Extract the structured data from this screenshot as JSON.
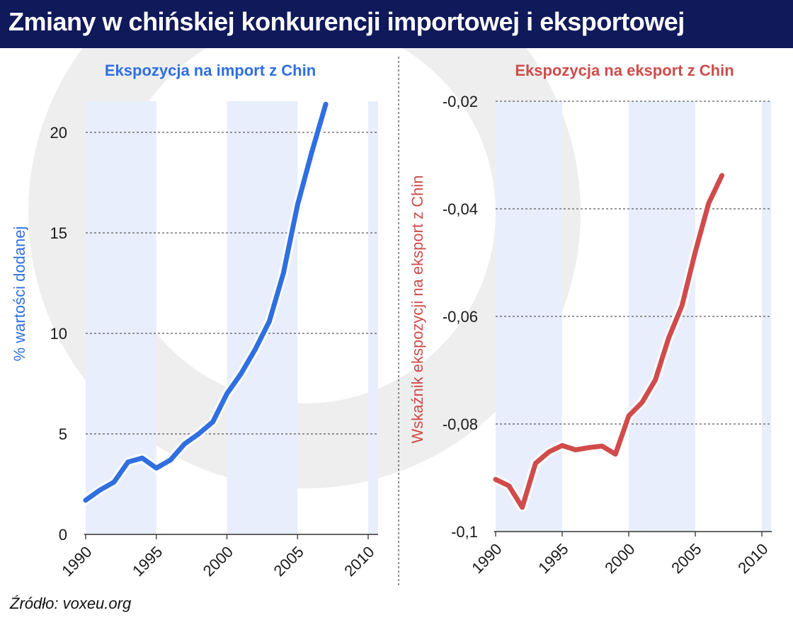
{
  "header": {
    "title": "Zmiany w chińskiej konkurencji importowej i eksportowej"
  },
  "source": "Źródło: voxeu.org",
  "colors": {
    "title_bg": "#10195a",
    "import_line": "#2f6fe0",
    "export_line": "#d04b4b",
    "band": "#e8eefb",
    "watermark": "#eeeeee"
  },
  "chart_data": [
    {
      "type": "line",
      "title": "Ekspozycja na import z Chin",
      "ylabel": "% wartości dodanej",
      "xlabel": "",
      "xlim": [
        1990,
        2010
      ],
      "ylim": [
        0,
        20
      ],
      "xticks": [
        1990,
        1995,
        2000,
        2005,
        2010
      ],
      "yticks": [
        {
          "value": 0,
          "label": "0"
        },
        {
          "value": 5,
          "label": "5"
        },
        {
          "value": 10,
          "label": "10"
        },
        {
          "value": 15,
          "label": "15"
        },
        {
          "value": 20,
          "label": "20"
        }
      ],
      "grid": "horizontal dashed",
      "shaded_periods": [
        [
          1990,
          1995
        ],
        [
          2000,
          2005
        ],
        [
          2010,
          2010.7
        ]
      ],
      "series": [
        {
          "color": "#2f6fe0",
          "x": [
            1990,
            1991,
            1992,
            1993,
            1994,
            1995,
            1996,
            1997,
            1998,
            1999,
            2000,
            2001,
            2002,
            2003,
            2004,
            2005,
            2006,
            2007
          ],
          "y": [
            1.7,
            2.2,
            2.6,
            3.6,
            3.8,
            3.3,
            3.7,
            4.5,
            5.0,
            5.6,
            7.0,
            8.0,
            9.2,
            10.6,
            13.0,
            16.4,
            19.0,
            21.4
          ]
        }
      ]
    },
    {
      "type": "line",
      "title": "Ekspozycja na eksport z Chin",
      "ylabel": "Wskaźnik ekspozycji na eksport z Chin",
      "xlabel": "",
      "xlim": [
        1990,
        2010
      ],
      "ylim": [
        -0.1,
        -0.02
      ],
      "xticks": [
        1990,
        1995,
        2000,
        2005,
        2010
      ],
      "yticks": [
        {
          "value": -0.1,
          "label": "-0,1"
        },
        {
          "value": -0.08,
          "label": "-0,08"
        },
        {
          "value": -0.06,
          "label": "-0,06"
        },
        {
          "value": -0.04,
          "label": "-0,04"
        },
        {
          "value": -0.02,
          "label": "-0,02"
        }
      ],
      "grid": "horizontal dashed",
      "shaded_periods": [
        [
          1990,
          1995
        ],
        [
          2000,
          2005
        ],
        [
          2010,
          2010.7
        ]
      ],
      "series": [
        {
          "color": "#d04b4b",
          "x": [
            1990,
            1991,
            1992,
            1993,
            1994,
            1995,
            1996,
            1997,
            1998,
            1999,
            2000,
            2001,
            2002,
            2003,
            2004,
            2005,
            2006,
            2007
          ],
          "y": [
            -0.0903,
            -0.0915,
            -0.0955,
            -0.0873,
            -0.0852,
            -0.084,
            -0.0848,
            -0.0844,
            -0.0841,
            -0.0856,
            -0.0785,
            -0.076,
            -0.0718,
            -0.064,
            -0.058,
            -0.048,
            -0.039,
            -0.0338
          ]
        }
      ]
    }
  ]
}
